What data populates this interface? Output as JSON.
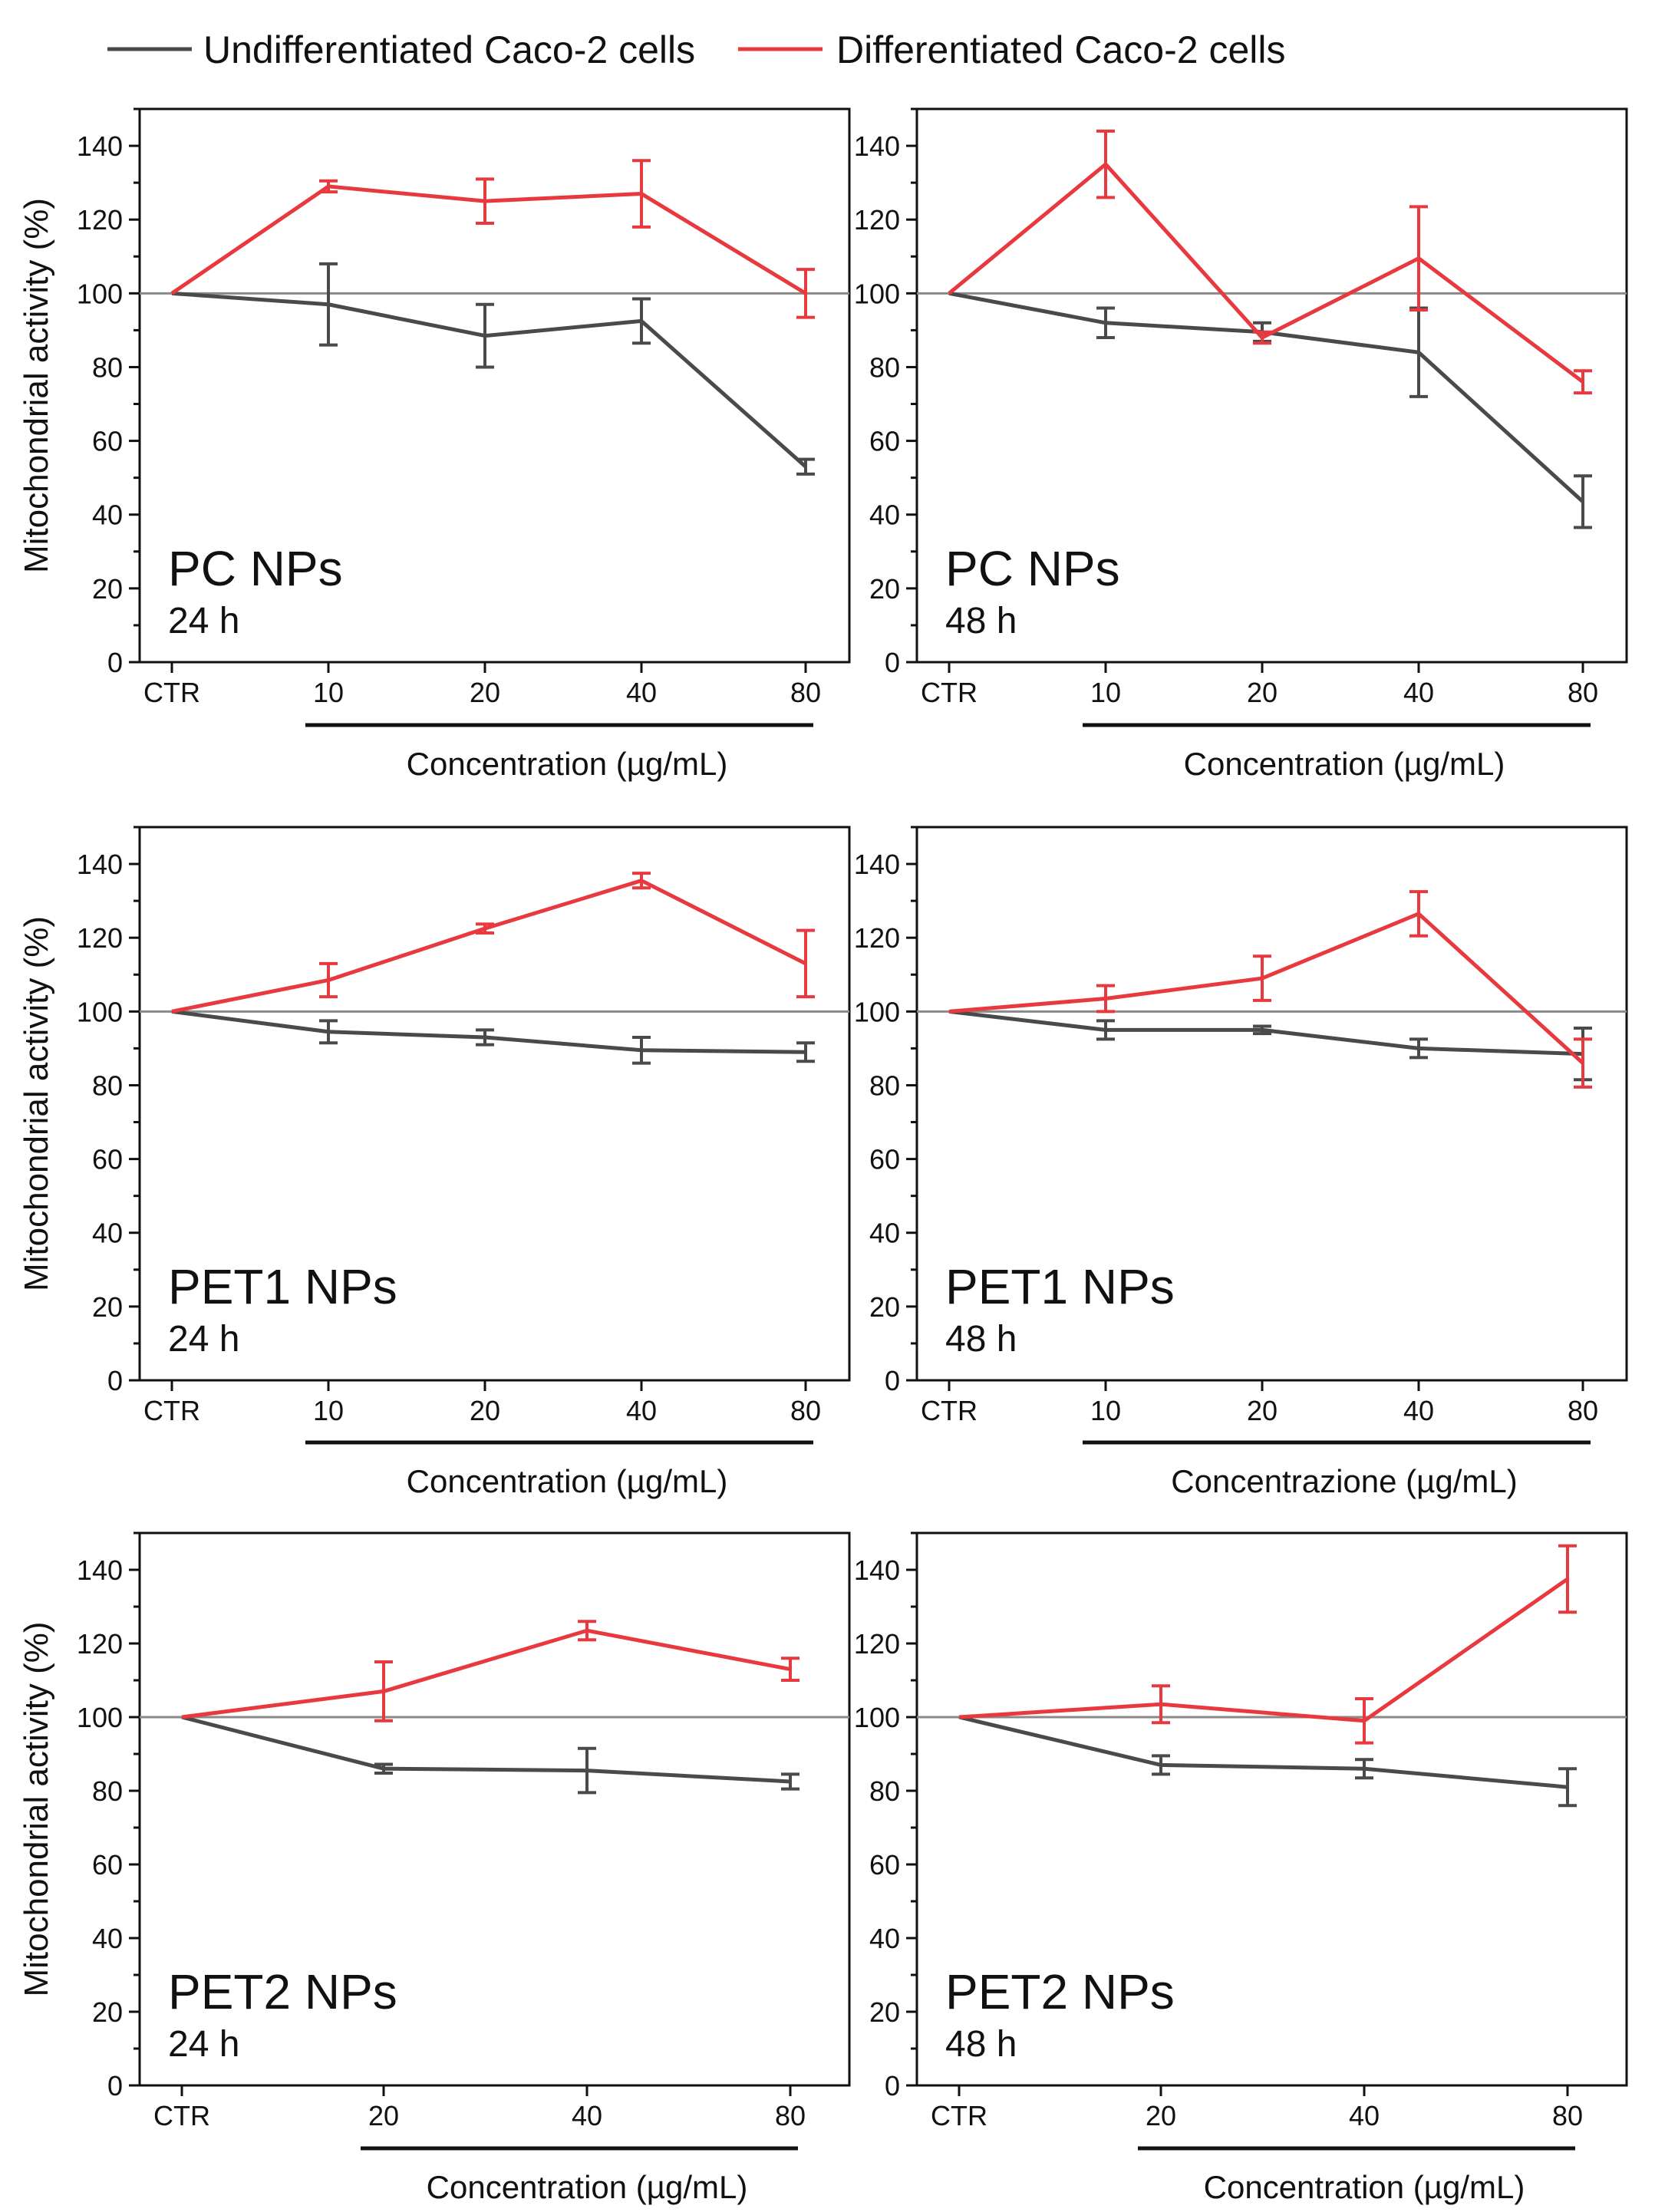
{
  "legend": {
    "items": [
      {
        "label": "Undifferentiated Caco-2 cells",
        "color": "#4a4a4a"
      },
      {
        "label": "Differentiated Caco-2 cells",
        "color": "#e8393f"
      }
    ]
  },
  "reference_line": {
    "value": 100,
    "color": "#8a8a8a"
  },
  "chart_data": [
    {
      "type": "line",
      "title": "PC NPs",
      "subtitle": "24 h",
      "categories": [
        "CTR",
        "10",
        "20",
        "40",
        "80"
      ],
      "xlabel": "Concentration (µg/mL)",
      "ylabel": "Mitochondrial activity (%)",
      "ylim": [
        0,
        150
      ],
      "yticks": [
        0,
        20,
        40,
        60,
        80,
        100,
        120,
        140
      ],
      "series": [
        {
          "name": "Undifferentiated Caco-2 cells",
          "color": "#4a4a4a",
          "values": [
            100,
            97,
            88.5,
            92.5,
            53
          ],
          "errors": [
            0,
            11,
            8.5,
            6,
            2
          ]
        },
        {
          "name": "Differentiated Caco-2 cells",
          "color": "#e8393f",
          "values": [
            100,
            129,
            125,
            127,
            100
          ],
          "errors": [
            0,
            1.5,
            6,
            9,
            6.5
          ]
        }
      ]
    },
    {
      "type": "line",
      "title": "PC NPs",
      "subtitle": "48 h",
      "categories": [
        "CTR",
        "10",
        "20",
        "40",
        "80"
      ],
      "xlabel": "Concentration (µg/mL)",
      "ylabel": "",
      "ylim": [
        0,
        150
      ],
      "yticks": [
        0,
        20,
        40,
        60,
        80,
        100,
        120,
        140
      ],
      "series": [
        {
          "name": "Undifferentiated Caco-2 cells",
          "color": "#4a4a4a",
          "values": [
            100,
            92,
            89.5,
            84,
            43.5
          ],
          "errors": [
            0,
            4,
            2.5,
            12,
            7
          ]
        },
        {
          "name": "Differentiated Caco-2 cells",
          "color": "#e8393f",
          "values": [
            100,
            135,
            88,
            109.5,
            76
          ],
          "errors": [
            0,
            9,
            1.5,
            14,
            3
          ]
        }
      ]
    },
    {
      "type": "line",
      "title": "PET1 NPs",
      "subtitle": "24 h",
      "categories": [
        "CTR",
        "10",
        "20",
        "40",
        "80"
      ],
      "xlabel": "Concentration (µg/mL)",
      "ylabel": "Mitochondrial activity (%)",
      "ylim": [
        0,
        150
      ],
      "yticks": [
        0,
        20,
        40,
        60,
        80,
        100,
        120,
        140
      ],
      "series": [
        {
          "name": "Undifferentiated Caco-2 cells",
          "color": "#4a4a4a",
          "values": [
            100,
            94.5,
            93,
            89.5,
            89
          ],
          "errors": [
            0,
            3,
            2,
            3.5,
            2.5
          ]
        },
        {
          "name": "Differentiated Caco-2 cells",
          "color": "#e8393f",
          "values": [
            100,
            108.5,
            122.5,
            135.5,
            113
          ],
          "errors": [
            0,
            4.5,
            1.2,
            2,
            9
          ]
        }
      ]
    },
    {
      "type": "line",
      "title": "PET1 NPs",
      "subtitle": "48 h",
      "categories": [
        "CTR",
        "10",
        "20",
        "40",
        "80"
      ],
      "xlabel": "Concentrazione (µg/mL)",
      "ylabel": "",
      "ylim": [
        0,
        150
      ],
      "yticks": [
        0,
        20,
        40,
        60,
        80,
        100,
        120,
        140
      ],
      "series": [
        {
          "name": "Undifferentiated Caco-2 cells",
          "color": "#4a4a4a",
          "values": [
            100,
            95,
            95,
            90,
            88.5
          ],
          "errors": [
            0,
            2.5,
            1,
            2.5,
            7
          ]
        },
        {
          "name": "Differentiated Caco-2 cells",
          "color": "#e8393f",
          "values": [
            100,
            103.5,
            109,
            126.5,
            86
          ],
          "errors": [
            0,
            3.5,
            6,
            6,
            6.5
          ]
        }
      ]
    },
    {
      "type": "line",
      "title": "PET2 NPs",
      "subtitle": "24 h",
      "categories": [
        "CTR",
        "20",
        "40",
        "80"
      ],
      "xlabel": "Concentration (µg/mL)",
      "ylabel": "Mitochondrial activity (%)",
      "ylim": [
        0,
        150
      ],
      "yticks": [
        0,
        20,
        40,
        60,
        80,
        100,
        120,
        140
      ],
      "series": [
        {
          "name": "Undifferentiated Caco-2 cells",
          "color": "#4a4a4a",
          "values": [
            100,
            86,
            85.5,
            82.5
          ],
          "errors": [
            0,
            1.2,
            6,
            2
          ]
        },
        {
          "name": "Differentiated Caco-2 cells",
          "color": "#e8393f",
          "values": [
            100,
            107,
            123.5,
            113
          ],
          "errors": [
            0,
            8,
            2.5,
            3
          ]
        }
      ]
    },
    {
      "type": "line",
      "title": "PET2 NPs",
      "subtitle": "48 h",
      "categories": [
        "CTR",
        "20",
        "40",
        "80"
      ],
      "xlabel": "Concentration (µg/mL)",
      "ylabel": "",
      "ylim": [
        0,
        150
      ],
      "yticks": [
        0,
        20,
        40,
        60,
        80,
        100,
        120,
        140
      ],
      "series": [
        {
          "name": "Undifferentiated Caco-2 cells",
          "color": "#4a4a4a",
          "values": [
            100,
            87,
            86,
            81
          ],
          "errors": [
            0,
            2.5,
            2.5,
            5
          ]
        },
        {
          "name": "Differentiated Caco-2 cells",
          "color": "#e8393f",
          "values": [
            100,
            103.5,
            99,
            137.5
          ],
          "errors": [
            0,
            5,
            6,
            9
          ]
        }
      ]
    }
  ]
}
